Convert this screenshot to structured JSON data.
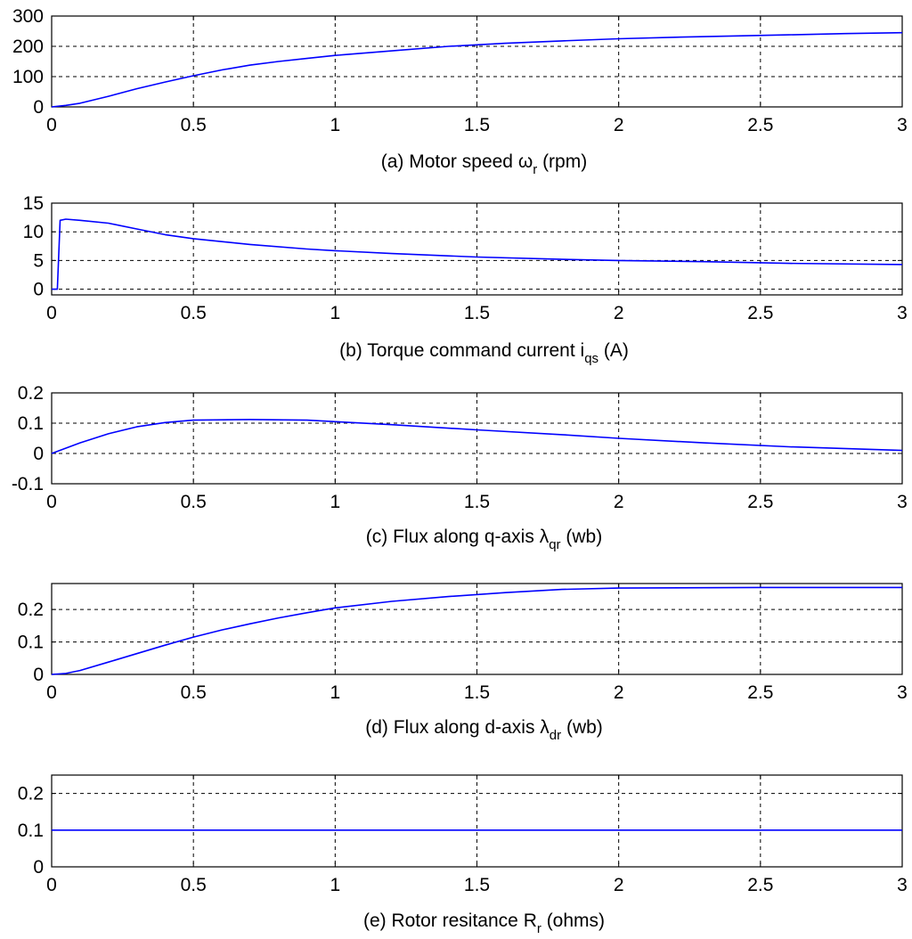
{
  "chart_data": [
    {
      "type": "line",
      "id": "a",
      "caption": {
        "pre": "(a) Motor speed ",
        "sym": "ω",
        "sub": "r",
        "post": " (rpm)"
      },
      "xlim": [
        0,
        3
      ],
      "ylim": [
        0,
        300
      ],
      "x_ticks": [
        "0",
        "0.5",
        "1",
        "1.5",
        "2",
        "2.5",
        "3"
      ],
      "x_tick_values": [
        0,
        0.5,
        1,
        1.5,
        2,
        2.5,
        3
      ],
      "y_ticks": [
        "0",
        "100",
        "200",
        "300"
      ],
      "y_tick_values": [
        0,
        100,
        200,
        300
      ],
      "grid": true,
      "color": "#0000ff",
      "series": [
        {
          "name": "speed",
          "x": [
            0,
            0.05,
            0.1,
            0.2,
            0.3,
            0.4,
            0.5,
            0.6,
            0.7,
            0.8,
            0.9,
            1.0,
            1.2,
            1.4,
            1.5,
            1.6,
            1.8,
            2.0,
            2.2,
            2.4,
            2.6,
            2.8,
            3.0
          ],
          "y": [
            0,
            5,
            12,
            35,
            60,
            82,
            103,
            122,
            138,
            150,
            160,
            170,
            185,
            200,
            205,
            210,
            218,
            225,
            230,
            234,
            238,
            242,
            245
          ]
        }
      ]
    },
    {
      "type": "line",
      "id": "b",
      "caption": {
        "pre": "(b) Torque  command current ",
        "sym": "i",
        "sub": "qs",
        "post": " (A)"
      },
      "xlim": [
        0,
        3
      ],
      "ylim": [
        -1,
        15
      ],
      "x_ticks": [
        "0",
        "0.5",
        "1",
        "1.5",
        "2",
        "2.5",
        "3"
      ],
      "x_tick_values": [
        0,
        0.5,
        1,
        1.5,
        2,
        2.5,
        3
      ],
      "y_ticks": [
        "0",
        "5",
        "10",
        "15"
      ],
      "y_tick_values": [
        0,
        5,
        10,
        15
      ],
      "grid": true,
      "color": "#0000ff",
      "series": [
        {
          "name": "iqs",
          "x": [
            0,
            0.02,
            0.03,
            0.05,
            0.1,
            0.2,
            0.3,
            0.4,
            0.5,
            0.7,
            0.9,
            1.0,
            1.2,
            1.5,
            1.8,
            2.0,
            2.3,
            2.6,
            3.0
          ],
          "y": [
            0,
            0,
            12,
            12.2,
            12,
            11.5,
            10.5,
            9.5,
            8.8,
            7.8,
            7.0,
            6.7,
            6.2,
            5.6,
            5.2,
            5.0,
            4.8,
            4.5,
            4.3
          ]
        }
      ]
    },
    {
      "type": "line",
      "id": "c",
      "caption": {
        "pre": "(c)  Flux along q-axis ",
        "sym": "λ",
        "sub": "qr",
        "post": " (wb)"
      },
      "xlim": [
        0,
        3
      ],
      "ylim": [
        -0.1,
        0.2
      ],
      "x_ticks": [
        "0",
        "0.5",
        "1",
        "1.5",
        "2",
        "2.5",
        "3"
      ],
      "x_tick_values": [
        0,
        0.5,
        1,
        1.5,
        2,
        2.5,
        3
      ],
      "y_ticks": [
        "-0.1",
        "0",
        "0.1",
        "0.2"
      ],
      "y_tick_values": [
        -0.1,
        0,
        0.1,
        0.2
      ],
      "grid": true,
      "color": "#0000ff",
      "series": [
        {
          "name": "lambda_qr",
          "x": [
            0,
            0.1,
            0.2,
            0.3,
            0.4,
            0.5,
            0.7,
            0.9,
            1.0,
            1.2,
            1.5,
            1.8,
            2.0,
            2.3,
            2.6,
            3.0
          ],
          "y": [
            0,
            0.035,
            0.065,
            0.088,
            0.102,
            0.11,
            0.112,
            0.11,
            0.105,
            0.095,
            0.078,
            0.062,
            0.05,
            0.035,
            0.022,
            0.01
          ]
        }
      ]
    },
    {
      "type": "line",
      "id": "d",
      "caption": {
        "pre": "(d) Flux along d-axis  ",
        "sym": "λ",
        "sub": "dr",
        "post": " (wb)"
      },
      "xlim": [
        0,
        3
      ],
      "ylim": [
        0,
        0.28
      ],
      "x_ticks": [
        "0",
        "0.5",
        "1",
        "1.5",
        "2",
        "2.5",
        "3"
      ],
      "x_tick_values": [
        0,
        0.5,
        1,
        1.5,
        2,
        2.5,
        3
      ],
      "y_ticks": [
        "0",
        "0.1",
        "0.2"
      ],
      "y_tick_values": [
        0,
        0.1,
        0.2
      ],
      "grid": true,
      "color": "#0000ff",
      "series": [
        {
          "name": "lambda_dr",
          "x": [
            0,
            0.05,
            0.1,
            0.2,
            0.3,
            0.4,
            0.5,
            0.6,
            0.7,
            0.8,
            0.9,
            1.0,
            1.2,
            1.4,
            1.6,
            1.8,
            2.0,
            2.5,
            3.0
          ],
          "y": [
            0,
            0.003,
            0.012,
            0.038,
            0.064,
            0.09,
            0.115,
            0.137,
            0.156,
            0.174,
            0.19,
            0.205,
            0.225,
            0.24,
            0.252,
            0.262,
            0.266,
            0.268,
            0.268
          ]
        }
      ]
    },
    {
      "type": "line",
      "id": "e",
      "caption": {
        "pre": "(e) Rotor resitance ",
        "sym": "R",
        "sub": "r",
        "post": " (ohms)"
      },
      "xlim": [
        0,
        3
      ],
      "ylim": [
        0,
        0.25
      ],
      "x_ticks": [
        "0",
        "0.5",
        "1",
        "1.5",
        "2",
        "2.5",
        "3"
      ],
      "x_tick_values": [
        0,
        0.5,
        1,
        1.5,
        2,
        2.5,
        3
      ],
      "y_ticks": [
        "0",
        "0.1",
        "0.2"
      ],
      "y_tick_values": [
        0,
        0.1,
        0.2
      ],
      "grid": true,
      "color": "#0000ff",
      "series": [
        {
          "name": "Rr",
          "x": [
            0,
            3
          ],
          "y": [
            0.1,
            0.1
          ]
        }
      ]
    }
  ]
}
